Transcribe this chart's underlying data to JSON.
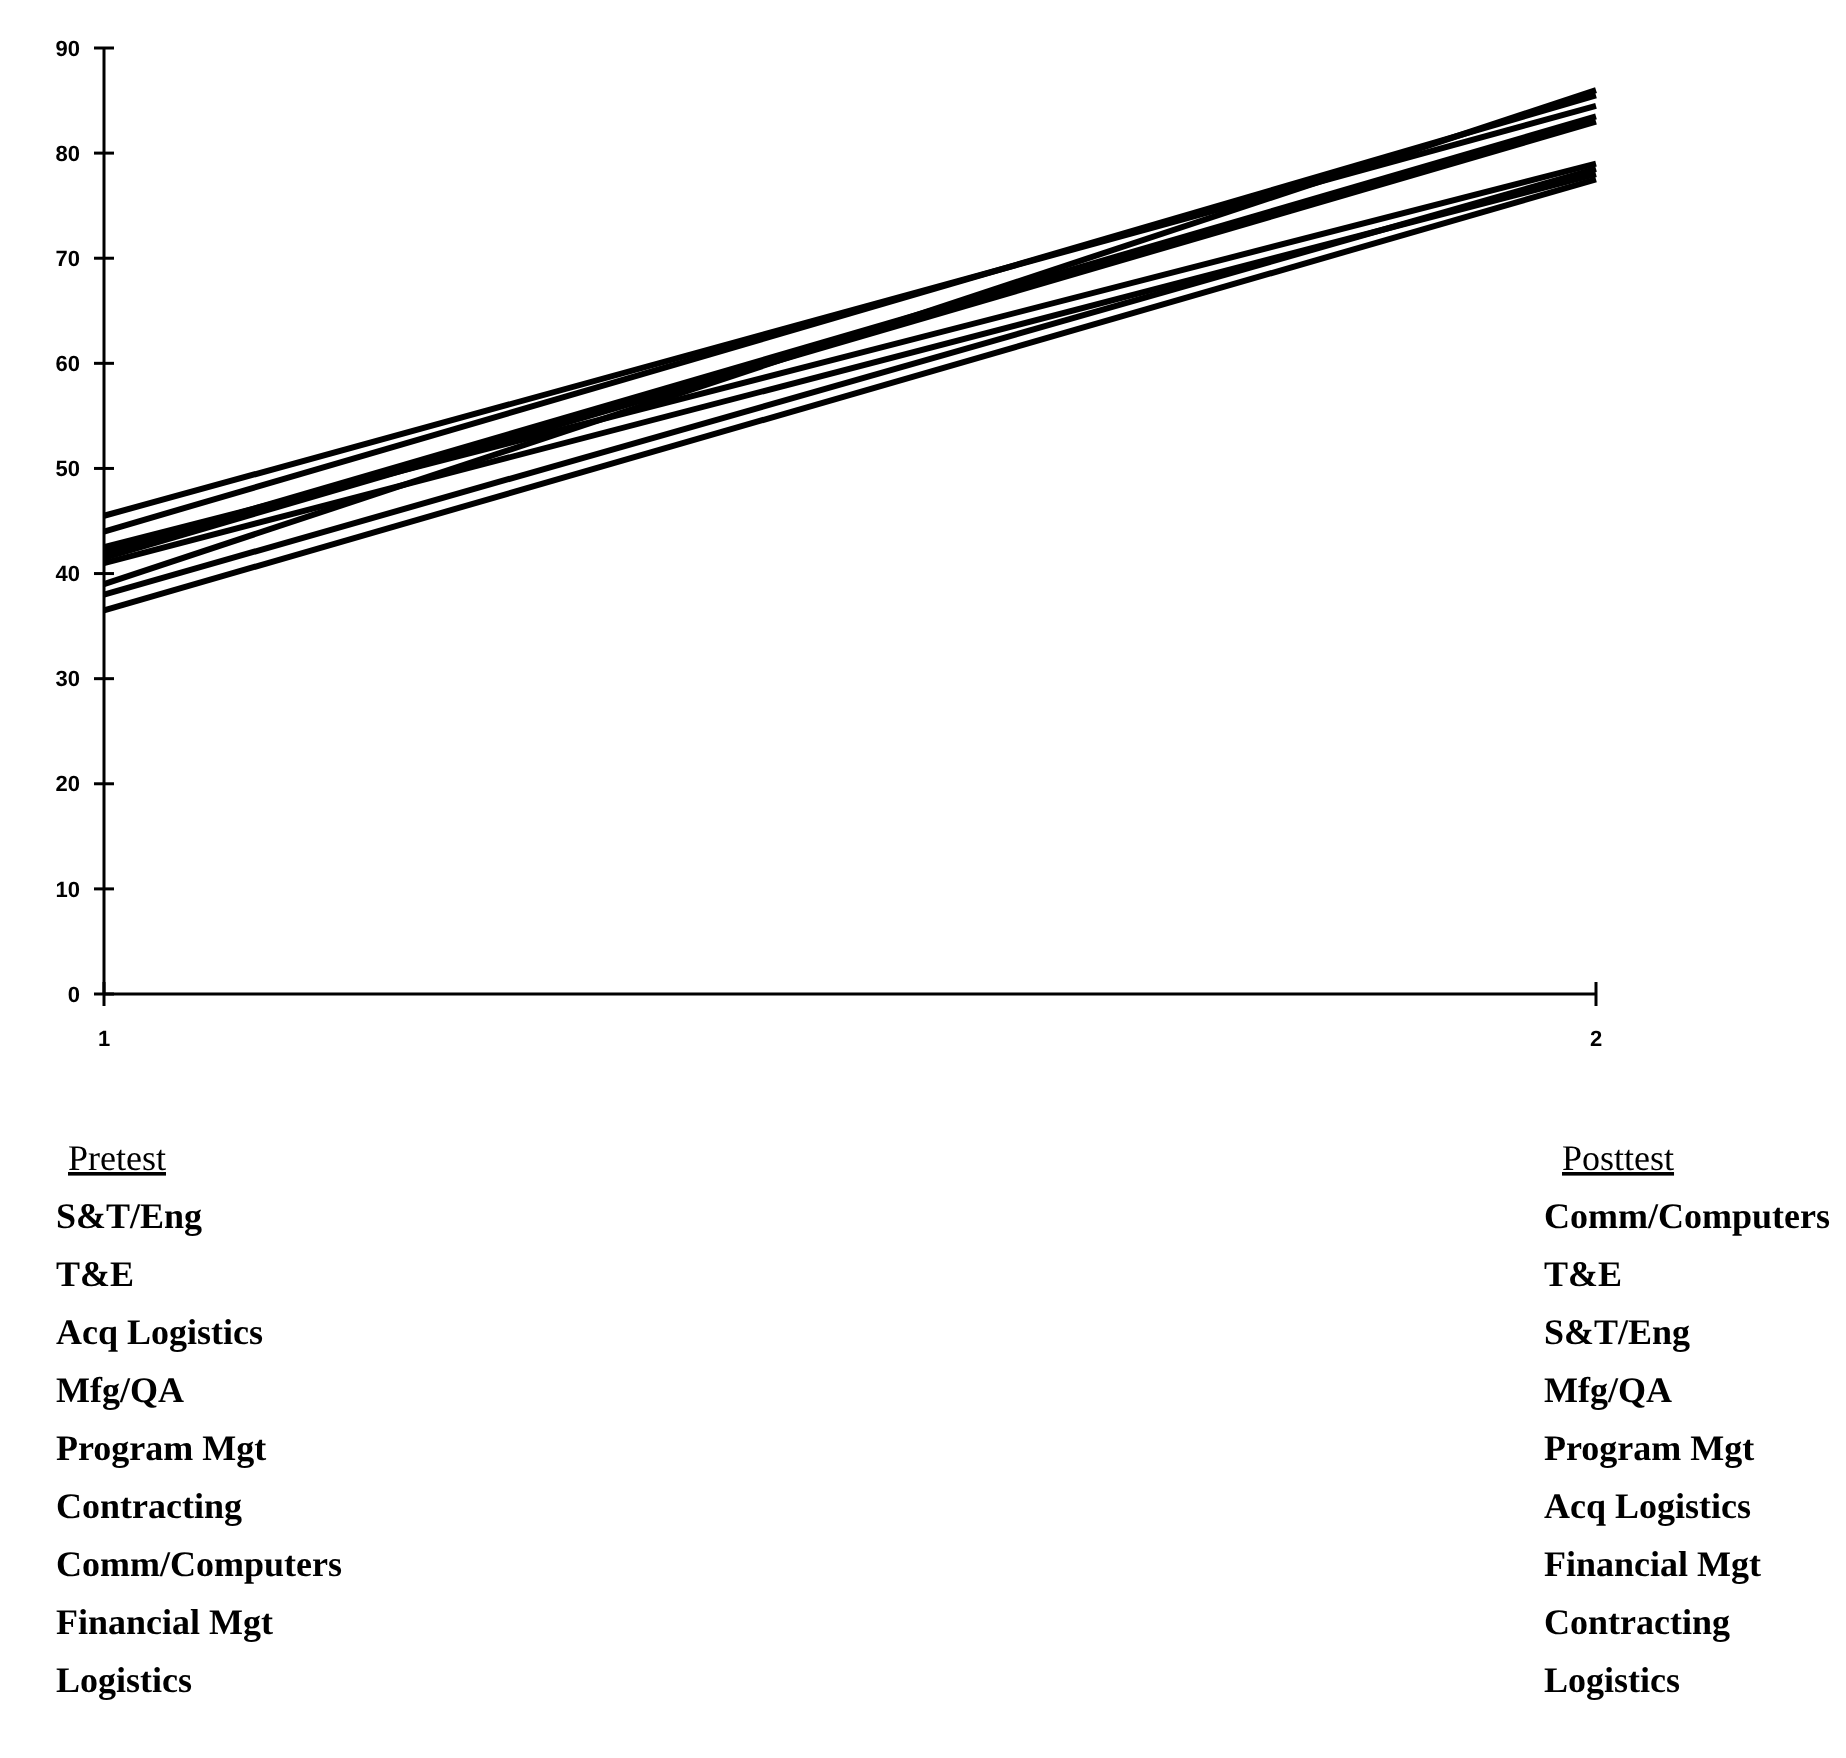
{
  "chart_data": {
    "type": "line",
    "x": [
      1,
      2
    ],
    "xlim": [
      1,
      2
    ],
    "xticks": [
      1,
      2
    ],
    "ylim": [
      0,
      90
    ],
    "yticks": [
      0,
      10,
      20,
      30,
      40,
      50,
      60,
      70,
      80,
      90
    ],
    "grid": false,
    "marker": "none",
    "line_style": "solid",
    "series": [
      {
        "color": "#000000",
        "values": [
          45.5,
          84.5
        ]
      },
      {
        "color": "#000000",
        "values": [
          44,
          85.5
        ]
      },
      {
        "color": "#000000",
        "values": [
          42.5,
          79
        ]
      },
      {
        "color": "#000000",
        "values": [
          42,
          83.5
        ]
      },
      {
        "color": "#000000",
        "values": [
          41.5,
          83
        ]
      },
      {
        "color": "#000000",
        "values": [
          41,
          78
        ]
      },
      {
        "color": "#000000",
        "values": [
          39,
          86
        ]
      },
      {
        "color": "#000000",
        "values": [
          38,
          78.5
        ]
      },
      {
        "color": "#000000",
        "values": [
          36.5,
          77.5
        ]
      }
    ],
    "annotations": [
      "Pretest",
      "S&T/Eng",
      "T&E",
      "Acq Logistics",
      "Mfg/QA",
      "Program Mgt",
      "Contracting",
      "Comm/Computers",
      "Financial Mgt",
      "Logistics",
      "Posttest",
      "Comm/Computers",
      "T&E",
      "S&T/Eng",
      "Mfg/QA",
      "Program Mgt",
      "Acq Logistics",
      "Financial Mgt",
      "Contracting",
      "Logistics"
    ]
  }
}
